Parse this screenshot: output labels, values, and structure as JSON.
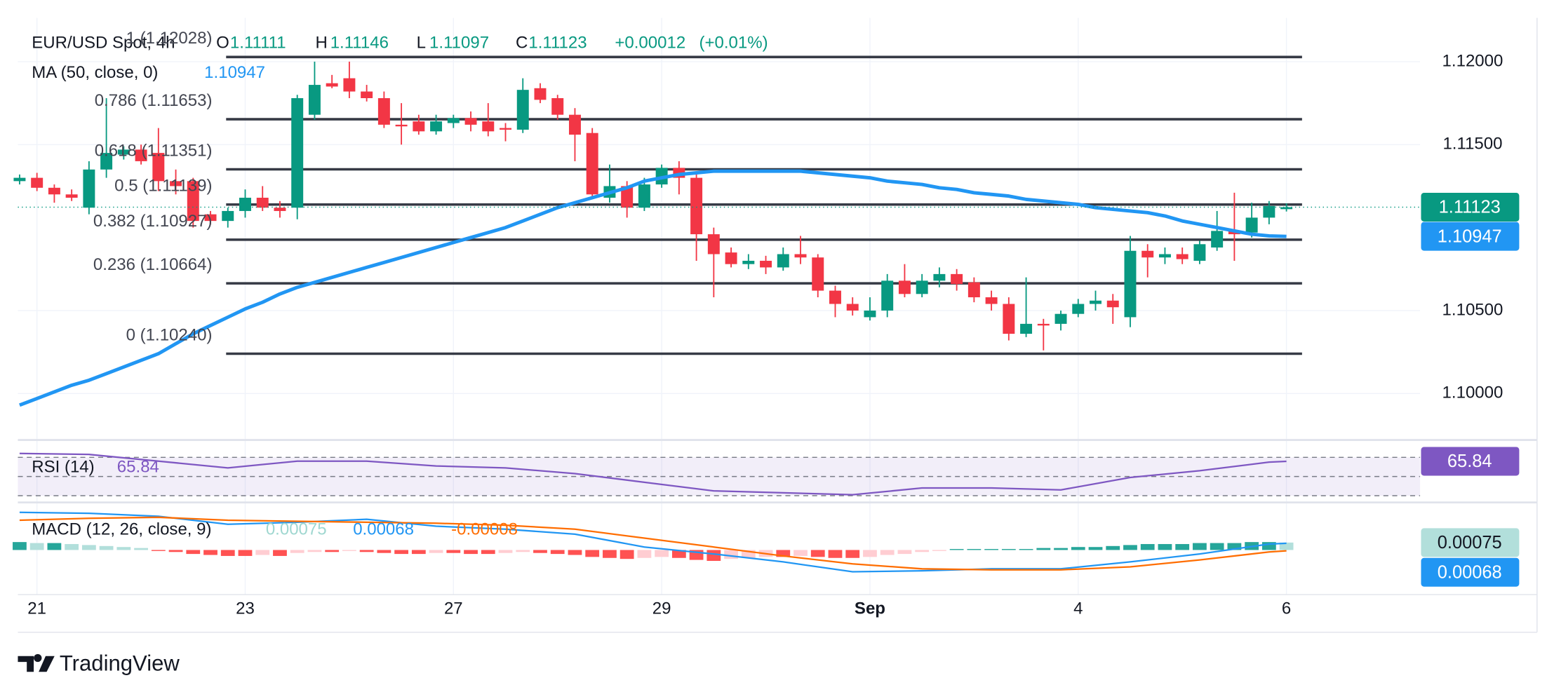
{
  "brand": "TradingView",
  "chart_data": [
    {
      "type": "candlestick",
      "title": "EUR/USD Spot, 4h",
      "ohlc_labels": [
        "O",
        "H",
        "L",
        "C"
      ],
      "change": "+0.00012",
      "change_pct": "(+0.01%)",
      "categories": [
        null,
        "21",
        null,
        null,
        null,
        null,
        null,
        null,
        null,
        null,
        null,
        null,
        null,
        "23",
        null,
        null,
        null,
        null,
        null,
        null,
        null,
        null,
        null,
        null,
        null,
        "27",
        null,
        null,
        null,
        null,
        null,
        null,
        null,
        null,
        null,
        null,
        null,
        "29",
        null,
        null,
        null,
        null,
        null,
        null,
        null,
        null,
        null,
        null,
        null,
        "Sep",
        null,
        null,
        null,
        null,
        null,
        null,
        null,
        null,
        null,
        null,
        null,
        "4",
        null,
        null,
        null,
        null,
        null,
        null,
        null,
        null,
        null,
        null,
        null,
        "6"
      ],
      "open": [
        1.1128,
        1.113,
        1.1124,
        1.112,
        1.1112,
        1.1135,
        1.1144,
        1.1147,
        1.1145,
        1.1128,
        1.1128,
        1.1108,
        1.1104,
        1.111,
        1.1118,
        1.1112,
        1.1112,
        1.1168,
        1.1187,
        1.119,
        1.1182,
        1.1178,
        1.1162,
        1.1164,
        1.1158,
        1.1163,
        1.1166,
        1.1164,
        1.116,
        1.1159,
        1.1184,
        1.1178,
        1.1168,
        1.1157,
        1.1118,
        1.1125,
        1.1112,
        1.1126,
        1.1136,
        1.113,
        1.1096,
        1.1085,
        1.1078,
        1.108,
        1.1076,
        1.1084,
        1.1082,
        1.1062,
        1.1054,
        1.1046,
        1.105,
        1.1068,
        1.106,
        1.1068,
        1.1072,
        1.1067,
        1.1058,
        1.1054,
        1.1036,
        1.1042,
        1.1042,
        1.1048,
        1.1054,
        1.1056,
        1.1046,
        1.1086,
        1.1082,
        1.1084,
        1.108,
        1.1088,
        1.1098,
        1.1097,
        1.1106,
        1.11111
      ],
      "high": [
        1.1132,
        1.1133,
        1.1126,
        1.1123,
        1.114,
        1.1178,
        1.1149,
        1.115,
        1.116,
        1.1135,
        1.113,
        1.111,
        1.1112,
        1.1123,
        1.1125,
        1.1116,
        1.118,
        1.12,
        1.1192,
        1.12,
        1.1186,
        1.1182,
        1.1175,
        1.1168,
        1.1168,
        1.1168,
        1.117,
        1.1175,
        1.1163,
        1.119,
        1.1187,
        1.118,
        1.1172,
        1.116,
        1.1138,
        1.1128,
        1.113,
        1.1138,
        1.114,
        1.1133,
        1.11,
        1.1088,
        1.1084,
        1.1083,
        1.1088,
        1.1095,
        1.1084,
        1.1065,
        1.1058,
        1.1058,
        1.1072,
        1.1078,
        1.1072,
        1.1076,
        1.1075,
        1.107,
        1.1062,
        1.1058,
        1.107,
        1.1045,
        1.105,
        1.1057,
        1.1062,
        1.106,
        1.1095,
        1.109,
        1.1088,
        1.1088,
        1.1092,
        1.111,
        1.1121,
        1.1115,
        1.1116,
        1.11146
      ],
      "low": [
        1.1126,
        1.1122,
        1.1115,
        1.1116,
        1.1108,
        1.113,
        1.1141,
        1.1138,
        1.1122,
        1.112,
        1.11,
        1.1102,
        1.11,
        1.1106,
        1.111,
        1.1106,
        1.1105,
        1.1165,
        1.1184,
        1.1178,
        1.1176,
        1.116,
        1.115,
        1.1156,
        1.1156,
        1.116,
        1.1158,
        1.1155,
        1.1152,
        1.1157,
        1.1175,
        1.1165,
        1.114,
        1.1118,
        1.1115,
        1.1106,
        1.111,
        1.1124,
        1.112,
        1.108,
        1.1058,
        1.1076,
        1.1075,
        1.1072,
        1.1074,
        1.1078,
        1.1058,
        1.1046,
        1.1047,
        1.1044,
        1.1046,
        1.1058,
        1.1058,
        1.1064,
        1.1062,
        1.1055,
        1.105,
        1.1032,
        1.1034,
        1.1026,
        1.1038,
        1.1046,
        1.105,
        1.1042,
        1.104,
        1.107,
        1.1078,
        1.1078,
        1.1078,
        1.1086,
        1.108,
        1.1094,
        1.1102,
        1.11097
      ],
      "close": [
        1.113,
        1.1124,
        1.112,
        1.1118,
        1.1135,
        1.1145,
        1.1147,
        1.114,
        1.1128,
        1.1125,
        1.1104,
        1.1104,
        1.111,
        1.1118,
        1.1112,
        1.111,
        1.1178,
        1.1186,
        1.1185,
        1.1182,
        1.1178,
        1.1162,
        1.1161,
        1.1158,
        1.1164,
        1.1166,
        1.1162,
        1.1158,
        1.1159,
        1.1183,
        1.1177,
        1.1168,
        1.1156,
        1.112,
        1.1125,
        1.1112,
        1.1126,
        1.1136,
        1.113,
        1.1096,
        1.1084,
        1.1078,
        1.108,
        1.1076,
        1.1084,
        1.1082,
        1.1062,
        1.1054,
        1.105,
        1.105,
        1.1068,
        1.106,
        1.1068,
        1.1072,
        1.1066,
        1.1058,
        1.1054,
        1.1036,
        1.1042,
        1.1041,
        1.1048,
        1.1054,
        1.1056,
        1.1052,
        1.1086,
        1.1082,
        1.1084,
        1.1081,
        1.109,
        1.1098,
        1.1096,
        1.1106,
        1.1113,
        1.11123
      ],
      "up_color": "#089981",
      "down_color": "#f23645",
      "ma": {
        "name": "MA (50, close, 0)",
        "color": "#2196f3",
        "values": [
          1.0993,
          1.0997,
          1.1001,
          1.1005,
          1.1008,
          1.1012,
          1.1016,
          1.102,
          1.1024,
          1.103,
          1.1036,
          1.1041,
          1.1046,
          1.1051,
          1.1055,
          1.106,
          1.1064,
          1.1067,
          1.107,
          1.1073,
          1.1076,
          1.1079,
          1.1082,
          1.1085,
          1.1088,
          1.1091,
          1.1094,
          1.1097,
          1.11,
          1.1104,
          1.1108,
          1.1112,
          1.1115,
          1.1118,
          1.1121,
          1.1124,
          1.1128,
          1.113,
          1.1132,
          1.1133,
          1.1134,
          1.1134,
          1.1134,
          1.1134,
          1.1134,
          1.1134,
          1.1133,
          1.1132,
          1.1131,
          1.113,
          1.1128,
          1.1127,
          1.1126,
          1.1124,
          1.1123,
          1.1121,
          1.112,
          1.1119,
          1.1117,
          1.1116,
          1.1115,
          1.1114,
          1.1112,
          1.1111,
          1.111,
          1.1109,
          1.1107,
          1.1104,
          1.1102,
          1.11,
          1.1098,
          1.1096,
          1.1095,
          1.10947
        ]
      },
      "fib": {
        "color": "#363a45",
        "values": [
          1.12028,
          1.11653,
          1.11351,
          1.11139,
          1.10927,
          1.10664,
          1.1024
        ],
        "value_labels": [
          "1 (1.12028)",
          "0.786 (1.11653)",
          "0.618 (1.11351)",
          "0.5 (1.11139)",
          "0.382 (1.10927)",
          "0.236 (1.10664)",
          "0 (1.10240)"
        ]
      },
      "xlim": [
        -0.1,
        80.7
      ],
      "ylim": [
        1.09726,
        1.12264
      ],
      "yticks": [
        {
          "value": 1.1,
          "label": "1.10000"
        },
        {
          "value": 1.105,
          "label": "1.10500"
        },
        {
          "value": 1.115,
          "label": "1.11500"
        },
        {
          "value": 1.12,
          "label": "1.12000"
        }
      ],
      "grid": true
    },
    {
      "type": "line",
      "title": "RSI (14)",
      "color": "#7e57c2",
      "x": [
        0,
        4,
        8,
        12,
        16,
        20,
        24,
        28,
        32,
        36,
        40,
        44,
        48,
        52,
        56,
        60,
        64,
        68,
        72,
        73
      ],
      "values": [
        74,
        73,
        66,
        59,
        66,
        66,
        61,
        59,
        53,
        44,
        35,
        33,
        31,
        38,
        38,
        36,
        49,
        56,
        65,
        65.84
      ],
      "ylim": [
        24,
        86
      ],
      "levels": [
        30,
        50,
        70
      ]
    },
    {
      "type": "macd",
      "title": "MACD (12, 26, close, 9)",
      "hist": {
        "values": [
          0.0008,
          0.0007,
          0.0007,
          0.0006,
          0.0005,
          0.0004,
          0.0003,
          0.0002,
          -0.0001,
          -0.0002,
          -0.0004,
          -0.0005,
          -0.0006,
          -0.0006,
          -0.0005,
          -0.0006,
          -0.0003,
          -0.0002,
          -0.0002,
          -0.0001,
          -0.0002,
          -0.0003,
          -0.0004,
          -0.0004,
          -0.0003,
          -0.0003,
          -0.0004,
          -0.0004,
          -0.0003,
          -0.0002,
          -0.0003,
          -0.0004,
          -0.0005,
          -0.0007,
          -0.0008,
          -0.0009,
          -0.0008,
          -0.0007,
          -0.0008,
          -0.001,
          -0.0011,
          -0.0009,
          -0.0008,
          -0.0007,
          -0.0007,
          -0.0006,
          -0.0007,
          -0.0008,
          -0.0008,
          -0.0007,
          -0.0005,
          -0.0004,
          -0.0002,
          -0.0001,
          0.0001,
          0.0001,
          0.0001,
          0.0001,
          0.0001,
          0.0002,
          0.0002,
          0.0003,
          0.0003,
          0.0004,
          0.0005,
          0.0006,
          0.0006,
          0.0006,
          0.0007,
          0.0007,
          0.0007,
          0.0008,
          0.0008,
          0.00075
        ]
      },
      "series": [
        {
          "color": "#2196f3",
          "x": [
            0,
            4,
            8,
            12,
            16,
            20,
            24,
            28,
            32,
            36,
            40,
            44,
            48,
            52,
            56,
            60,
            64,
            68,
            72,
            73
          ],
          "values": [
            0.0038,
            0.0037,
            0.0034,
            0.0026,
            0.0028,
            0.0031,
            0.0024,
            0.0021,
            0.0016,
            0.0003,
            -0.0004,
            -0.0012,
            -0.0022,
            -0.0021,
            -0.0019,
            -0.0019,
            -0.0012,
            -0.0004,
            0.0006,
            0.00068
          ]
        },
        {
          "color": "#ff6d00",
          "x": [
            0,
            4,
            8,
            12,
            16,
            20,
            24,
            28,
            32,
            36,
            40,
            44,
            48,
            52,
            56,
            60,
            64,
            68,
            72,
            73
          ],
          "values": [
            0.003,
            0.0032,
            0.0033,
            0.003,
            0.0029,
            0.0028,
            0.0027,
            0.0025,
            0.0021,
            0.0012,
            0.0003,
            -0.0006,
            -0.0014,
            -0.0019,
            -0.002,
            -0.002,
            -0.0017,
            -0.001,
            -0.0002,
            -8e-05
          ]
        }
      ],
      "ylim": [
        -0.0044,
        0.0046
      ]
    }
  ]
}
